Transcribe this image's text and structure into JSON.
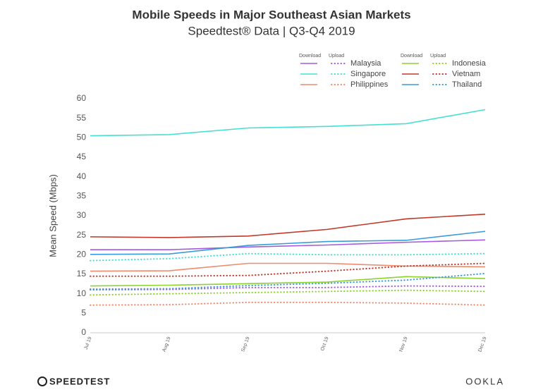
{
  "chart_data": {
    "type": "line",
    "title": "Mobile Speeds in Major Southeast Asian Markets",
    "subtitle": "Speedtest® Data | Q3-Q4 2019",
    "y_label": "Mean Speed (Mbps)",
    "legend_headers": [
      "Download",
      "Upload"
    ],
    "categories": [
      "Jul 19",
      "Aug 19",
      "Sep 19",
      "Oct 19",
      "Nov 19",
      "Dec 19"
    ],
    "ylim": [
      0,
      60
    ],
    "yticks": [
      0,
      5,
      10,
      15,
      20,
      25,
      30,
      35,
      40,
      45,
      50,
      55,
      60
    ],
    "grid": false,
    "series": [
      {
        "name": "Malaysia",
        "color": "#a35be0",
        "download": [
          21.3,
          21.3,
          22,
          22.5,
          23.2,
          23.8
        ],
        "upload": [
          11,
          11.1,
          11.6,
          11.6,
          12,
          11.9
        ]
      },
      {
        "name": "Singapore",
        "color": "#45e0d2",
        "download": [
          50.5,
          50.8,
          52.5,
          52.9,
          53.6,
          57.2
        ],
        "upload": [
          18.5,
          19,
          20.3,
          20,
          20,
          20.3
        ]
      },
      {
        "name": "Philippines",
        "color": "#f08a6c",
        "download": [
          15.8,
          15.9,
          17.8,
          17.8,
          17.1,
          16.9
        ],
        "upload": [
          7.1,
          7.2,
          7.8,
          7.8,
          7.6,
          7.1
        ]
      },
      {
        "name": "Indonesia",
        "color": "#8fd12f",
        "download": [
          12,
          12.2,
          12.6,
          13,
          14.4,
          13.9
        ],
        "upload": [
          9.7,
          10,
          10.3,
          10.6,
          10.9,
          10.6
        ]
      },
      {
        "name": "Vietnam",
        "color": "#c0392b",
        "download": [
          24.6,
          24.4,
          24.8,
          26.5,
          29.2,
          30.4
        ],
        "upload": [
          14.5,
          14.5,
          14.7,
          15.8,
          17.1,
          17.8
        ]
      },
      {
        "name": "Thailand",
        "color": "#3a9bd9",
        "download": [
          20.1,
          20.2,
          22.4,
          23.4,
          23.7,
          26
        ],
        "upload": [
          11.2,
          11.3,
          12.1,
          12.7,
          13.5,
          15.2
        ]
      }
    ]
  },
  "footer": {
    "left": "SPEEDTEST",
    "right": "OOKLA"
  }
}
